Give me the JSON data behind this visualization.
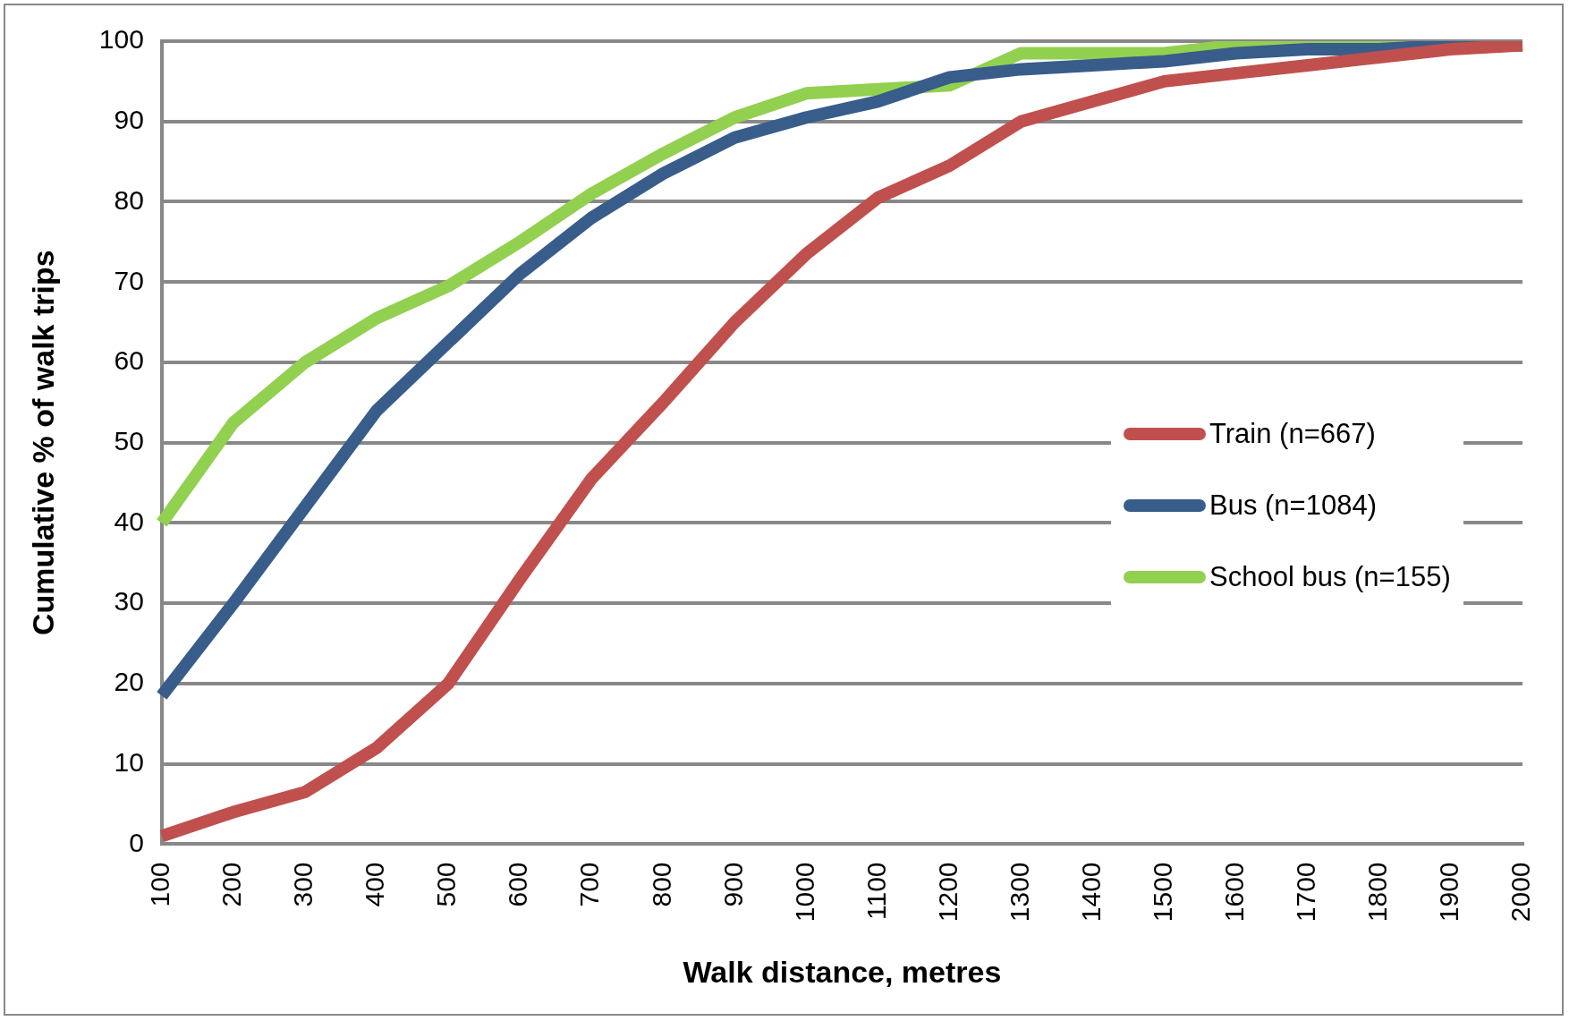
{
  "chart_data": {
    "type": "line",
    "xlabel": "Walk distance, metres",
    "ylabel": "Cumulative % of walk trips",
    "categories": [
      "100",
      "200",
      "300",
      "400",
      "500",
      "600",
      "700",
      "800",
      "900",
      "1000",
      "1100",
      "1200",
      "1300",
      "1400",
      "1500",
      "1600",
      "1700",
      "1800",
      "1900",
      "2000"
    ],
    "ylim": [
      0,
      100
    ],
    "yticks": [
      0,
      10,
      20,
      30,
      40,
      50,
      60,
      70,
      80,
      90,
      100
    ],
    "grid": "y",
    "legend": "right",
    "marker": "none",
    "line_style": "solid",
    "series": [
      {
        "name": "Train (n=667)",
        "color": "#c0504d",
        "values": [
          1,
          4,
          6.5,
          12,
          20,
          33,
          45.5,
          55,
          65,
          73.5,
          80.5,
          84.5,
          90,
          92.5,
          95,
          96,
          97,
          98,
          99,
          99.5
        ]
      },
      {
        "name": "Bus (n=1084)",
        "color": "#385d8a",
        "values": [
          18.5,
          30,
          42,
          54,
          62.5,
          71,
          78,
          83.5,
          88,
          90.5,
          92.5,
          95.5,
          96.5,
          97,
          97.5,
          98.5,
          99,
          99,
          99.5,
          99.5
        ]
      },
      {
        "name": "School bus (n=155)",
        "color": "#92d050",
        "values": [
          40,
          52.5,
          60,
          65.5,
          69.5,
          75,
          81,
          86,
          90.5,
          93.5,
          94,
          94.5,
          98.5,
          98.5,
          98.5,
          99.5,
          99.5,
          99.5,
          99.5,
          99.5
        ]
      }
    ]
  }
}
